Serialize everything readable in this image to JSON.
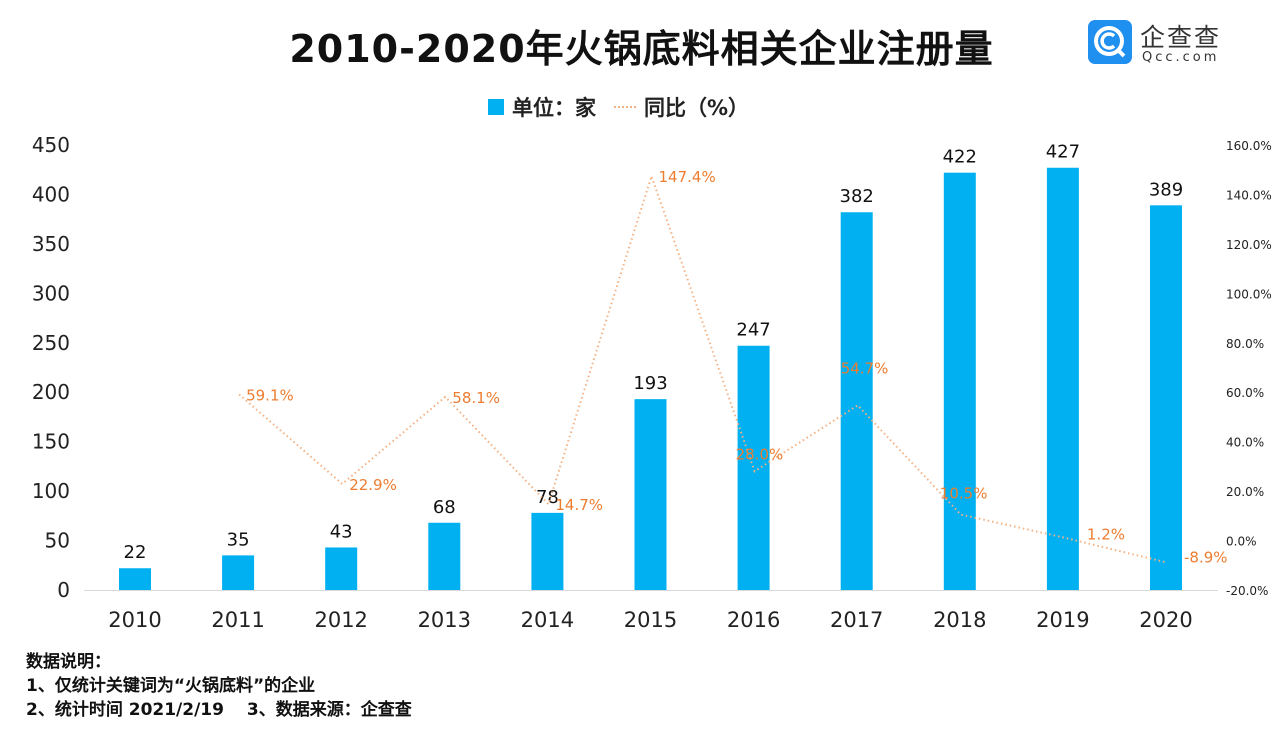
{
  "title": "2010-2020年火锅底料相关企业注册量",
  "logo": {
    "cn": "企查查",
    "en": "Qcc.com",
    "color": "#1f8ff0"
  },
  "legend": {
    "bar": "单位：家",
    "line": "同比（%）"
  },
  "chart_data": {
    "type": "bar+line",
    "categories": [
      "2010",
      "2011",
      "2012",
      "2013",
      "2014",
      "2015",
      "2016",
      "2017",
      "2018",
      "2019",
      "2020"
    ],
    "series": [
      {
        "name": "单位：家",
        "type": "bar",
        "axis": "left",
        "color": "#00b0f0",
        "values": [
          22,
          35,
          43,
          68,
          78,
          193,
          247,
          382,
          422,
          427,
          389
        ],
        "labels": [
          "22",
          "35",
          "43",
          "68",
          "78",
          "193",
          "247",
          "382",
          "422",
          "427",
          "389"
        ]
      },
      {
        "name": "同比（%）",
        "type": "line",
        "axis": "right",
        "style": "dotted",
        "color": "#f4b183",
        "label_color": "#ed7d31",
        "values": [
          null,
          59.1,
          22.9,
          58.1,
          14.7,
          147.4,
          28.0,
          54.7,
          10.5,
          1.2,
          -8.9
        ],
        "labels": [
          "",
          "59.1%",
          "22.9%",
          "58.1%",
          "14.7%",
          "147.4%",
          "28.0%",
          "54.7%",
          "10.5%",
          "1.2%",
          "-8.9%"
        ]
      }
    ],
    "left_axis": {
      "ylim": [
        0,
        450
      ],
      "ticks": [
        "0",
        "50",
        "100",
        "150",
        "200",
        "250",
        "300",
        "350",
        "400",
        "450"
      ]
    },
    "right_axis": {
      "ylim": [
        -20,
        160
      ],
      "ticks": [
        "-20.0%",
        "0.0%",
        "20.0%",
        "40.0%",
        "60.0%",
        "80.0%",
        "100.0%",
        "120.0%",
        "140.0%",
        "160.0%"
      ]
    },
    "grid": false,
    "legend_position": "top"
  },
  "notes": {
    "heading": "数据说明：",
    "line1": "1、仅统计关键词为“火锅底料”的企业",
    "line2": "2、统计时间 2021/2/19　 3、数据来源：企查查"
  }
}
